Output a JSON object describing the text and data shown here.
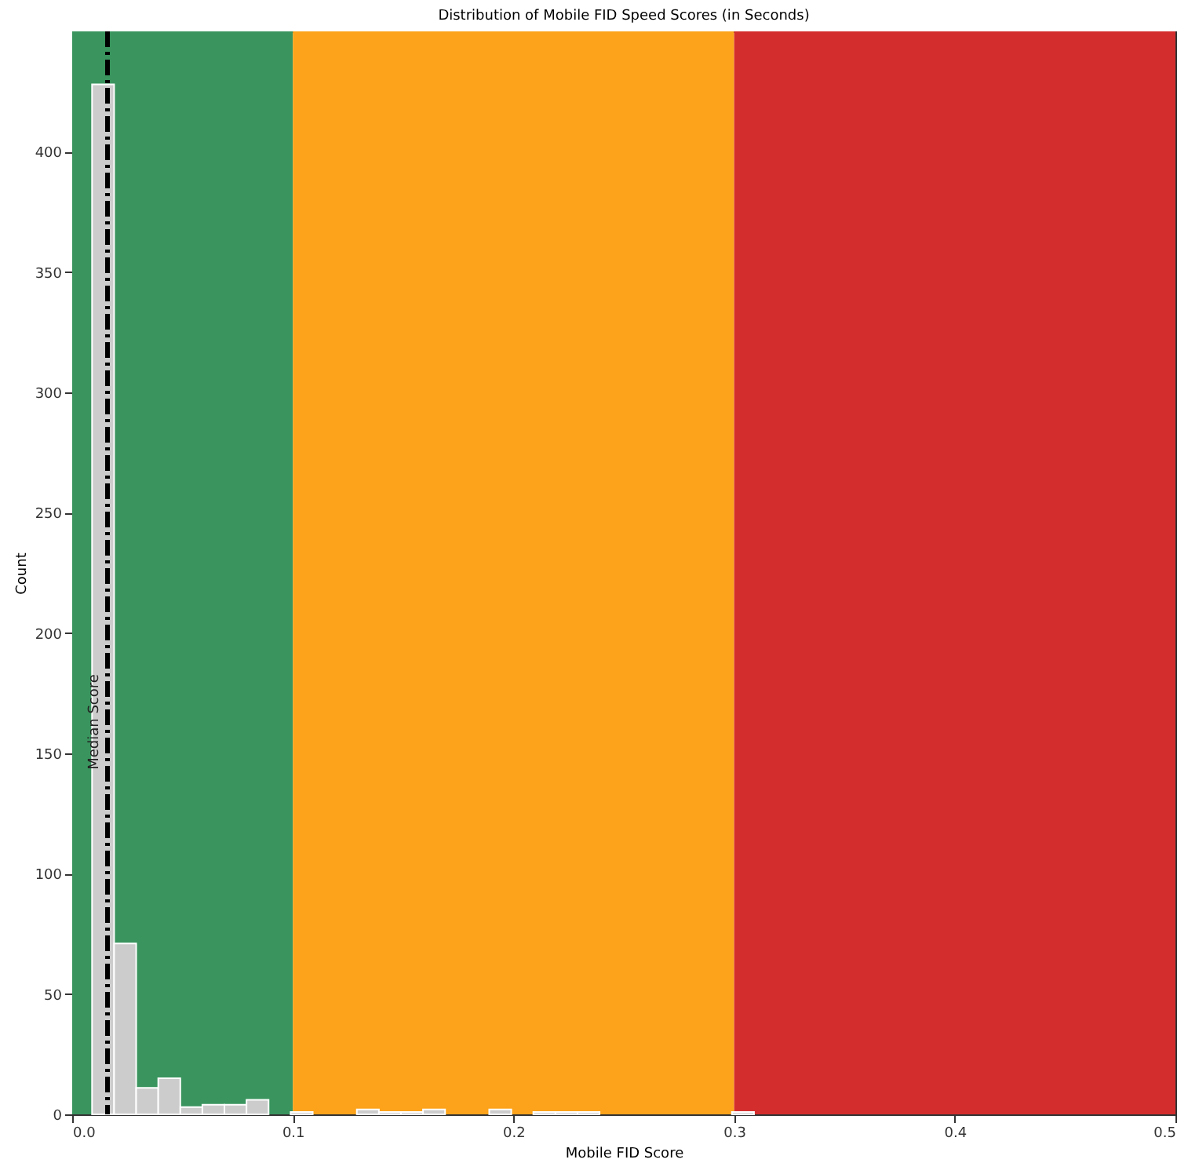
{
  "chart_data": {
    "type": "histogram",
    "title": "Distribution of Mobile FID Speed Scores (in Seconds)",
    "xlabel": "Mobile FID Score",
    "ylabel": "Count",
    "bins": [
      0.009,
      0.019,
      0.029,
      0.039,
      0.049,
      0.059,
      0.069,
      0.079,
      0.089,
      0.099,
      0.109,
      0.119,
      0.129,
      0.139,
      0.149,
      0.159,
      0.169,
      0.179,
      0.189,
      0.199,
      0.209,
      0.219,
      0.229,
      0.239,
      0.249,
      0.259,
      0.269,
      0.279,
      0.289,
      0.299,
      0.309
    ],
    "values": [
      428,
      71,
      11,
      15,
      3,
      4,
      4,
      6,
      0,
      1,
      0,
      0,
      2,
      1,
      1,
      2,
      0,
      0,
      2,
      0,
      1,
      1,
      1,
      0,
      0,
      0,
      0,
      0,
      0,
      1
    ],
    "color": "#cccccc",
    "xlim": [
      0,
      0.5
    ],
    "xticks": [
      {
        "value": 0,
        "label": "0.0"
      },
      0.1,
      0.2,
      0.3,
      0.4,
      0.5
    ],
    "ylim": [
      0,
      450
    ],
    "yticks": [
      0,
      50,
      100,
      150,
      200,
      250,
      300,
      350,
      400
    ],
    "bands": [
      {
        "axis": "x",
        "from": 0,
        "to": 0.1,
        "color": "#3a945e"
      },
      {
        "axis": "x",
        "from": 0.1,
        "to": 0.3,
        "color": "#fca31b"
      },
      {
        "axis": "x",
        "from": 0.3,
        "to": 0.5,
        "color": "#d42d2d"
      }
    ],
    "ref_lines": [
      {
        "axis": "x",
        "value": 0.016,
        "label": "Median Score",
        "color": "#000000",
        "line_style": "dashed"
      }
    ],
    "grid": false
  }
}
